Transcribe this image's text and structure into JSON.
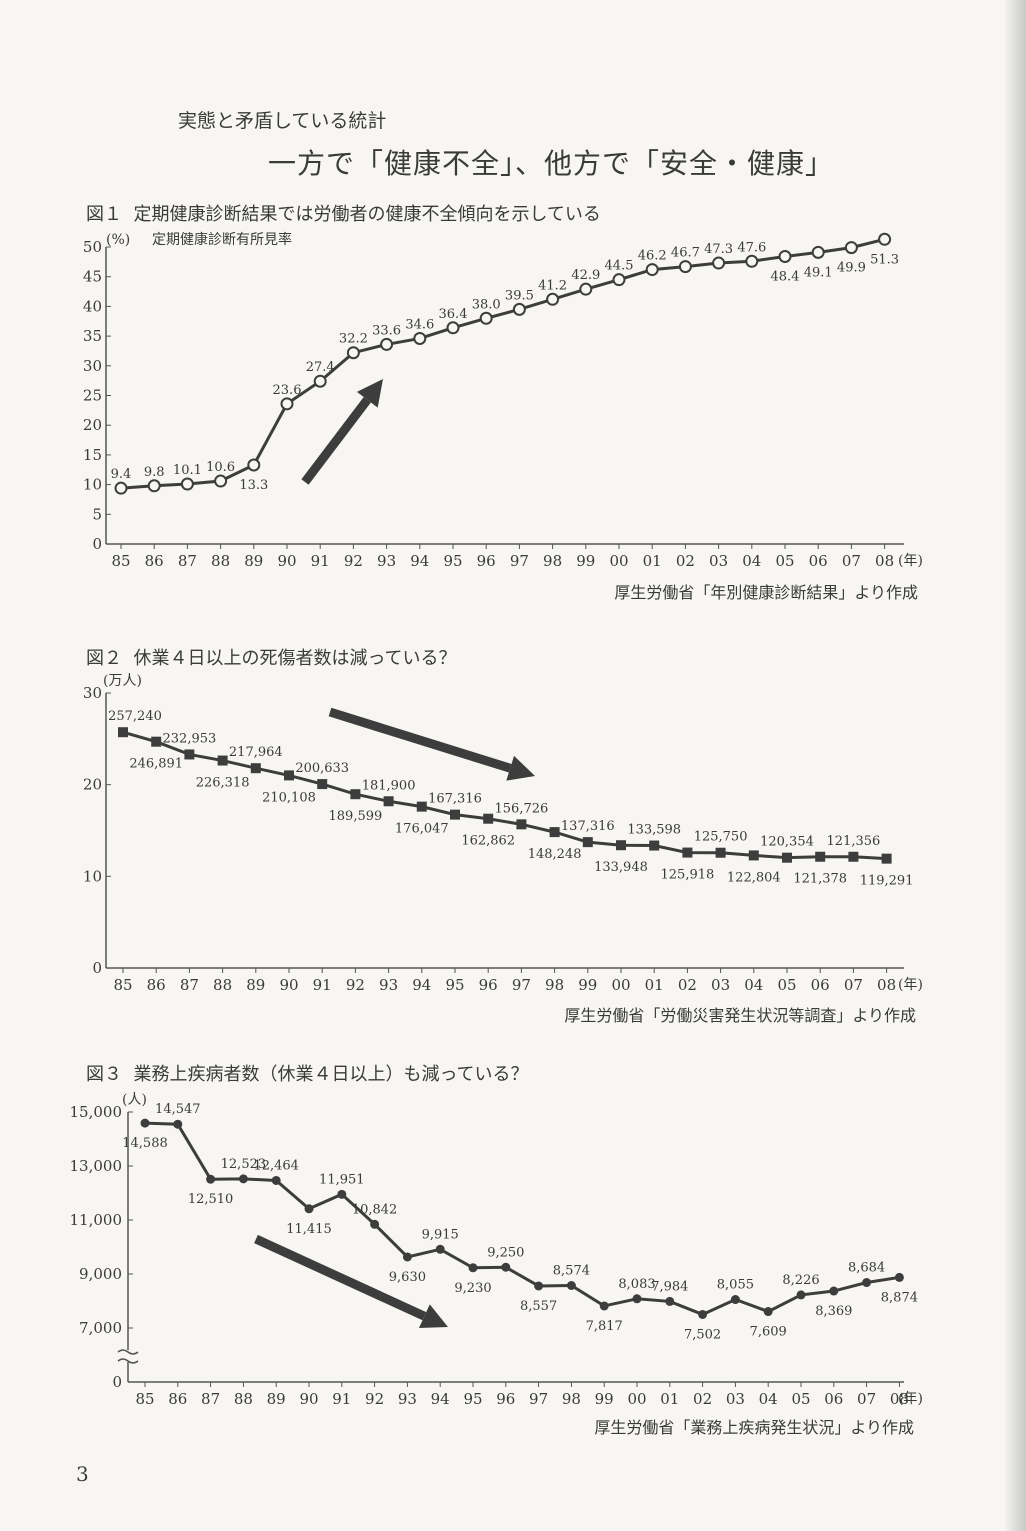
{
  "page": {
    "kicker": "実態と矛盾している統計",
    "headline": "一方で「健康不全」、他方で「安全・健康」",
    "page_number": "3"
  },
  "chart_data": [
    {
      "type": "line",
      "fig_label": "図１",
      "title": "定期健康診断結果では労働者の健康不全傾向を示している",
      "unit": "(%)",
      "series_label": "定期健康診断有所見率",
      "x_unit": "(年)",
      "source": "厚生労働省「年別健康診断結果」より作成",
      "categories": [
        "85",
        "86",
        "87",
        "88",
        "89",
        "90",
        "91",
        "92",
        "93",
        "94",
        "95",
        "96",
        "97",
        "98",
        "99",
        "00",
        "01",
        "02",
        "03",
        "04",
        "05",
        "06",
        "07",
        "08"
      ],
      "values": [
        9.4,
        9.8,
        10.1,
        10.6,
        13.3,
        23.6,
        27.4,
        32.2,
        33.6,
        34.6,
        36.4,
        38.0,
        39.5,
        41.2,
        42.9,
        44.5,
        46.2,
        46.7,
        47.3,
        47.6,
        48.4,
        49.1,
        49.9,
        51.3
      ],
      "value_labels": [
        "9.4",
        "9.8",
        "10.1",
        "10.6",
        "13.3",
        "23.6",
        "27.4",
        "32.2",
        "33.6",
        "34.6",
        "36.4",
        "38.0",
        "39.5",
        "41.2",
        "42.9",
        "44.5",
        "46.2",
        "46.7",
        "47.3",
        "47.6",
        "48.4",
        "49.1",
        "49.9",
        "51.3"
      ],
      "yticks": [
        "0",
        "5",
        "10",
        "15",
        "20",
        "25",
        "30",
        "35",
        "40",
        "45",
        "50"
      ],
      "ylim": [
        0,
        50
      ],
      "marker": "open-circle",
      "trend_arrow": "up"
    },
    {
      "type": "line",
      "fig_label": "図２",
      "title": "休業４日以上の死傷者数は減っている？",
      "unit": "(万人)",
      "x_unit": "(年)",
      "source": "厚生労働省「労働災害発生状況等調査」より作成",
      "categories": [
        "85",
        "86",
        "87",
        "88",
        "89",
        "90",
        "91",
        "92",
        "93",
        "94",
        "95",
        "96",
        "97",
        "98",
        "99",
        "00",
        "01",
        "02",
        "03",
        "04",
        "05",
        "06",
        "07",
        "08"
      ],
      "values": [
        257240,
        246891,
        232953,
        226318,
        217964,
        210108,
        200633,
        189599,
        181900,
        176047,
        167316,
        162862,
        156726,
        148248,
        137316,
        133948,
        133598,
        125918,
        125750,
        122804,
        120354,
        121378,
        121356,
        119291
      ],
      "value_labels": [
        "257,240",
        "246,891",
        "232,953",
        "226,318",
        "217,964",
        "210,108",
        "200,633",
        "189,599",
        "181,900",
        "176,047",
        "167,316",
        "162,862",
        "156,726",
        "148,248",
        "137,316",
        "133,948",
        "133,598",
        "125,918",
        "125,750",
        "122,804",
        "120,354",
        "121,378",
        "121,356",
        "119,291"
      ],
      "yticks": [
        "0",
        "10",
        "20",
        "30"
      ],
      "ylim": [
        0,
        30
      ],
      "marker": "filled-square",
      "trend_arrow": "down"
    },
    {
      "type": "line",
      "fig_label": "図３",
      "title": "業務上疾病者数（休業４日以上）も減っている？",
      "unit": "(人)",
      "x_unit": "(年)",
      "source": "厚生労働省「業務上疾病発生状況」より作成",
      "categories": [
        "85",
        "86",
        "87",
        "88",
        "89",
        "90",
        "91",
        "92",
        "93",
        "94",
        "95",
        "96",
        "97",
        "98",
        "99",
        "00",
        "01",
        "02",
        "03",
        "04",
        "05",
        "06",
        "07",
        "08"
      ],
      "values": [
        14588,
        14547,
        12510,
        12523,
        12464,
        11415,
        11951,
        10842,
        9630,
        9915,
        9230,
        9250,
        8557,
        8574,
        7817,
        8083,
        7984,
        7502,
        8055,
        7609,
        8226,
        8369,
        8684,
        8874
      ],
      "value_labels": [
        "14,588",
        "14,547",
        "12,510",
        "12,523",
        "12,464",
        "11,415",
        "11,951",
        "10,842",
        "9,630",
        "9,915",
        "9,230",
        "9,250",
        "8,557",
        "8,574",
        "7,817",
        "8,083",
        "7,984",
        "7,502",
        "8,055",
        "7,609",
        "8,226",
        "8,369",
        "8,684",
        "8,874"
      ],
      "yticks": [
        "0",
        "7,000",
        "9,000",
        "11,000",
        "13,000",
        "15,000"
      ],
      "ylim": [
        7000,
        15000
      ],
      "axis_break": true,
      "marker": "filled-circle",
      "trend_arrow": "down"
    }
  ]
}
